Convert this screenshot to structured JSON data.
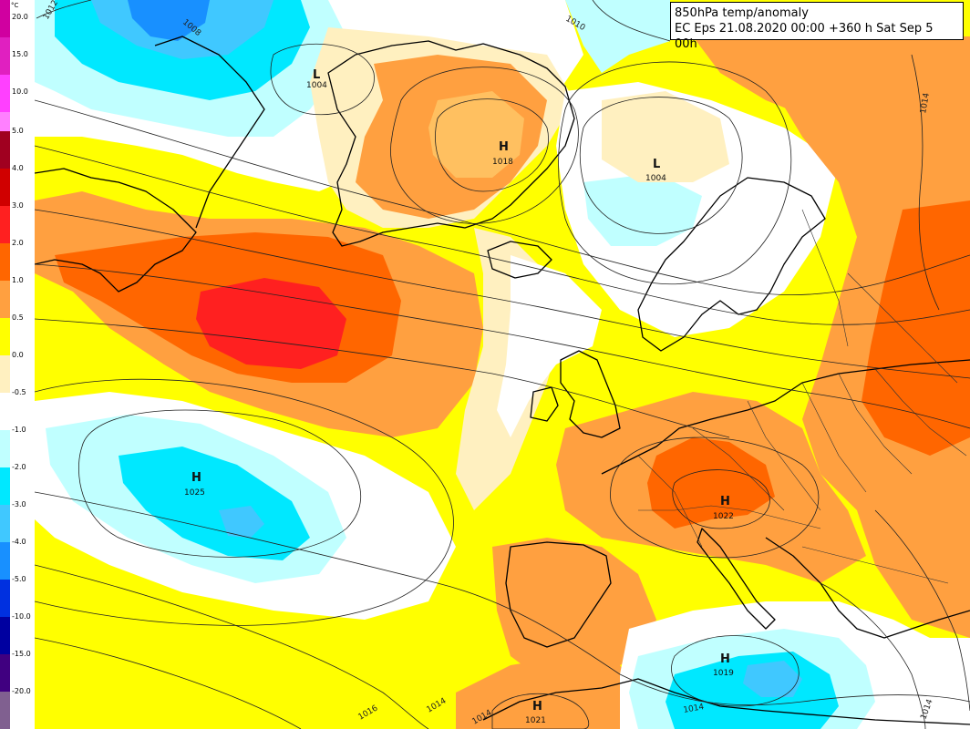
{
  "title": {
    "line1": "850hPa temp/anomaly",
    "line2": "EC Eps 21.08.2020 00:00 +360 h Sat Sep 5 00h"
  },
  "legend": {
    "unit": "°C",
    "labels": [
      "20.0",
      "15.0",
      "10.0",
      "5.0",
      "4.0",
      "3.0",
      "2.0",
      "1.0",
      "0.5",
      "0.0",
      "-0.5",
      "-1.0",
      "-2.0",
      "-3.0",
      "-4.0",
      "-5.0",
      "-10.0",
      "-15.0",
      "-20.0"
    ],
    "colors": [
      "#d000a0",
      "#e020c0",
      "#ff40ff",
      "#ff80ff",
      "#a00020",
      "#d00000",
      "#ff2020",
      "#ff6600",
      "#ffa040",
      "#ffff00",
      "#fff0c0",
      "#ffffff",
      "#c0ffff",
      "#00e8ff",
      "#40c8ff",
      "#1890ff",
      "#0030e0",
      "#0000a0",
      "#400080",
      "#806090"
    ]
  },
  "pressure_centers": [
    {
      "type": "L",
      "value": "1004"
    },
    {
      "type": "H",
      "value": "1018"
    },
    {
      "type": "L",
      "value": "1004"
    },
    {
      "type": "H",
      "value": "1025"
    },
    {
      "type": "H",
      "value": "1022"
    },
    {
      "type": "H",
      "value": "1019"
    },
    {
      "type": "H",
      "value": "1021"
    }
  ],
  "isobar_labels": [
    "1012",
    "1008",
    "1010",
    "1014",
    "1016",
    "1014",
    "1014",
    "1014",
    "1014"
  ]
}
